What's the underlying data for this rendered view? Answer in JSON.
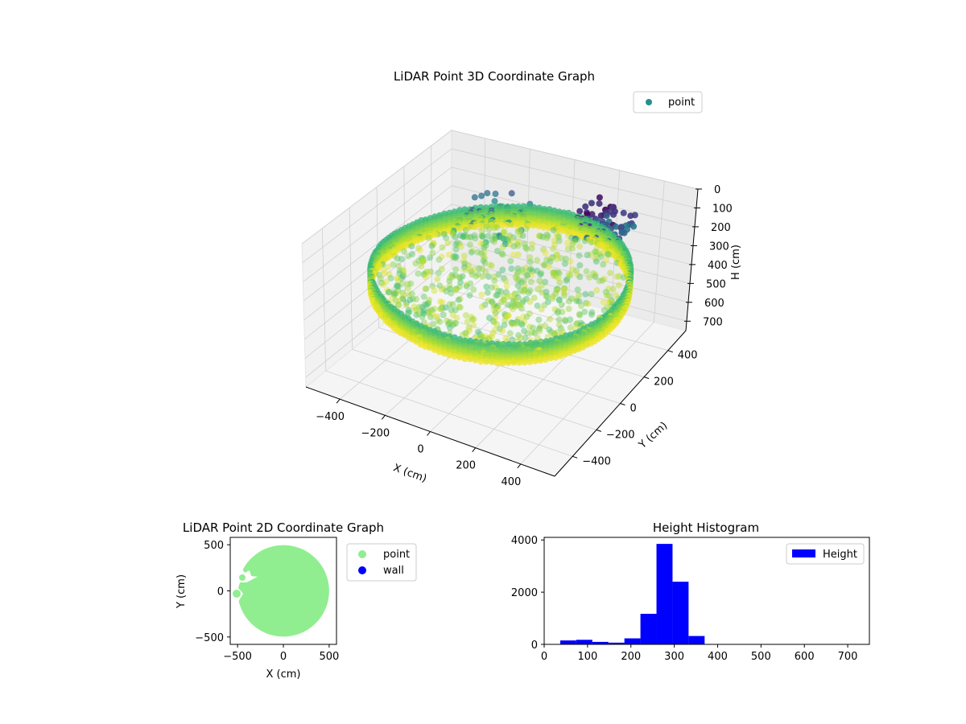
{
  "chart_data": [
    {
      "type": "scatter",
      "title": "LiDAR Point 3D Coordinate Graph",
      "xlabel": "X (cm)",
      "ylabel": "Y (cm)",
      "zlabel": "H (cm)",
      "xlim": [
        -550,
        550
      ],
      "ylim": [
        -550,
        550
      ],
      "zlim": [
        0,
        750
      ],
      "z_inverted": true,
      "xticks": [
        -400,
        -200,
        0,
        200,
        400
      ],
      "yticks": [
        -400,
        -200,
        0,
        200,
        400
      ],
      "zticks": [
        0,
        100,
        200,
        300,
        400,
        500,
        600,
        700
      ],
      "legend": [
        {
          "name": "point",
          "color": "#21918c"
        }
      ],
      "legend_position": "top-right",
      "colormap": "viridis",
      "wall_radius": 500,
      "wall_height_range": [
        250,
        350
      ]
    },
    {
      "type": "scatter",
      "title": "LiDAR Point 2D Coordinate Graph",
      "xlabel": "X (cm)",
      "ylabel": "Y (cm)",
      "xlim": [
        -580,
        580
      ],
      "ylim": [
        -580,
        580
      ],
      "xticks": [
        -500,
        0,
        500
      ],
      "yticks": [
        -500,
        0,
        500
      ],
      "series": [
        {
          "name": "point",
          "color": "#90ee90"
        },
        {
          "name": "wall",
          "color": "#0000ff"
        }
      ],
      "legend_position": "outside-right",
      "disk_radius": 500
    },
    {
      "type": "bar",
      "title": "Height Histogram",
      "xlim": [
        0,
        750
      ],
      "ylim": [
        0,
        4100
      ],
      "xticks": [
        0,
        100,
        200,
        300,
        400,
        500,
        600,
        700
      ],
      "yticks": [
        0,
        2000,
        4000
      ],
      "bins": [
        {
          "x0": 37,
          "x1": 74,
          "count": 150
        },
        {
          "x0": 74,
          "x1": 111,
          "count": 175
        },
        {
          "x0": 111,
          "x1": 148,
          "count": 95
        },
        {
          "x0": 148,
          "x1": 185,
          "count": 65
        },
        {
          "x0": 185,
          "x1": 222,
          "count": 230
        },
        {
          "x0": 222,
          "x1": 259,
          "count": 1170
        },
        {
          "x0": 259,
          "x1": 296,
          "count": 3850
        },
        {
          "x0": 296,
          "x1": 333,
          "count": 2400
        },
        {
          "x0": 333,
          "x1": 370,
          "count": 320
        },
        {
          "x0": 370,
          "x1": 407,
          "count": 0
        },
        {
          "x0": 407,
          "x1": 444,
          "count": 0
        },
        {
          "x0": 444,
          "x1": 481,
          "count": 0
        },
        {
          "x0": 481,
          "x1": 518,
          "count": 0
        },
        {
          "x0": 518,
          "x1": 555,
          "count": 0
        },
        {
          "x0": 555,
          "x1": 592,
          "count": 0
        },
        {
          "x0": 592,
          "x1": 629,
          "count": 0
        },
        {
          "x0": 629,
          "x1": 666,
          "count": 0
        },
        {
          "x0": 666,
          "x1": 703,
          "count": 0
        },
        {
          "x0": 703,
          "x1": 740,
          "count": 2
        }
      ],
      "legend": [
        {
          "name": "Height",
          "color": "#0000ff"
        }
      ],
      "legend_position": "top-right",
      "bar_color": "#0000ff"
    }
  ]
}
